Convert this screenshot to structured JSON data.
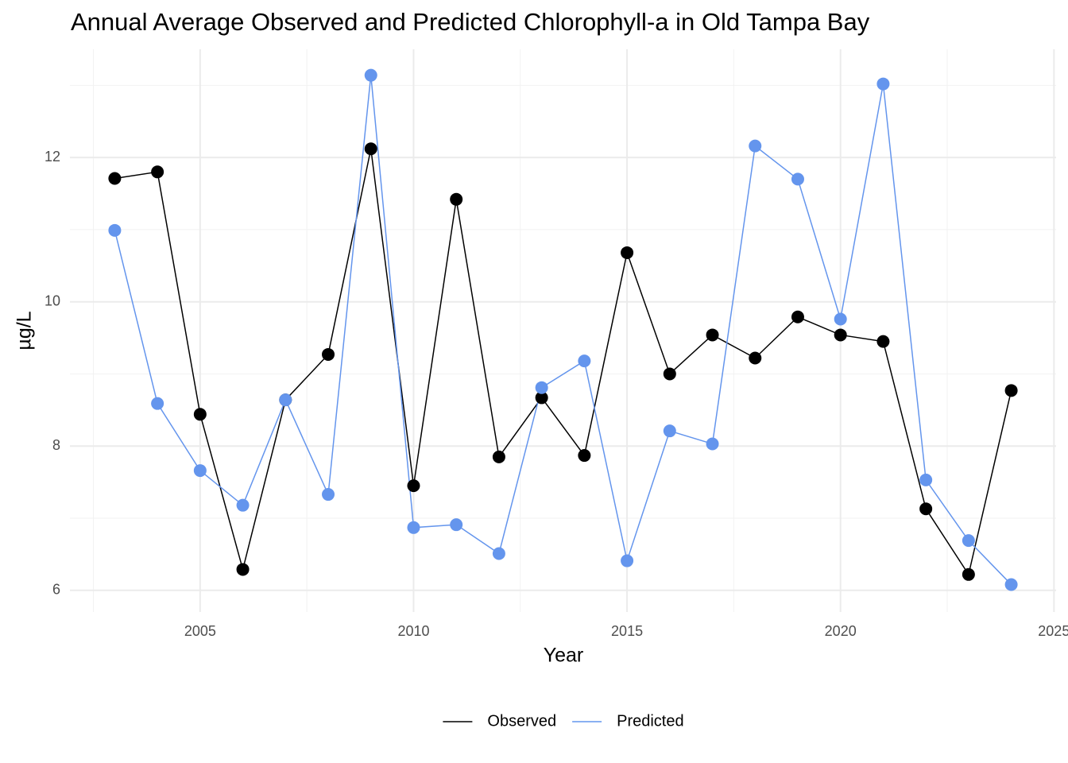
{
  "chart_data": {
    "type": "line",
    "title": "Annual Average Observed and Predicted Chlorophyll-a in Old Tampa Bay",
    "x_label": "Year",
    "y_label": "µg/L",
    "x": [
      2003,
      2004,
      2005,
      2006,
      2007,
      2008,
      2009,
      2010,
      2011,
      2012,
      2013,
      2014,
      2015,
      2016,
      2017,
      2018,
      2019,
      2020,
      2021,
      2022,
      2023,
      2024
    ],
    "series": [
      {
        "name": "Observed",
        "color": "#000000",
        "values": [
          11.71,
          11.8,
          8.44,
          6.29,
          8.64,
          9.27,
          12.12,
          7.45,
          11.42,
          7.85,
          8.67,
          7.87,
          10.68,
          9.0,
          9.54,
          9.22,
          9.79,
          9.54,
          9.45,
          7.13,
          6.22,
          8.77
        ]
      },
      {
        "name": "Predicted",
        "color": "#6495ED",
        "values": [
          10.99,
          8.59,
          7.66,
          7.18,
          8.64,
          7.33,
          13.14,
          6.87,
          6.91,
          6.51,
          8.81,
          9.18,
          6.41,
          8.21,
          8.03,
          12.16,
          11.7,
          9.76,
          13.02,
          7.53,
          6.69,
          6.08
        ]
      }
    ],
    "xlim": [
      2001.95,
      2025.05
    ],
    "xticks": [
      2005,
      2010,
      2015,
      2020,
      2025
    ],
    "ylim": [
      5.7,
      13.5
    ],
    "yticks": [
      6,
      8,
      10,
      12
    ],
    "x_minor_ticks": [
      2002.5,
      2007.5,
      2012.5,
      2017.5,
      2022.5
    ],
    "y_minor_ticks": [
      7,
      9,
      11,
      13
    ],
    "grid": true,
    "points": true,
    "legend": "bottom"
  }
}
